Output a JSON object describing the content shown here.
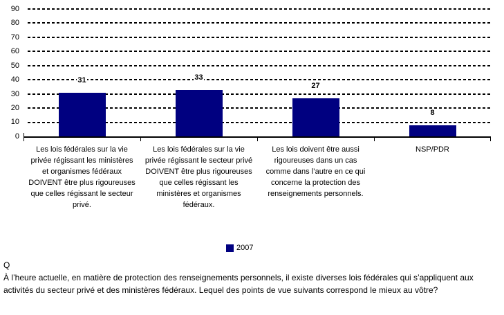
{
  "chart_data": {
    "type": "bar",
    "categories": [
      "Les lois fédérales sur la vie privée régissant les ministères et organismes fédéraux DOIVENT être plus rigoureuses que celles régissant le secteur privé.",
      "Les lois fédérales sur la vie privée régissant le secteur privé DOIVENT être plus rigoureuses que celles régissant les ministères et organismes fédéraux.",
      "Les lois doivent être aussi rigoureuses dans un cas comme dans l’autre en ce qui concerne la protection des renseignements personnels.",
      "NSP/PDR"
    ],
    "series": [
      {
        "name": "2007",
        "values": [
          31,
          33,
          27,
          8
        ]
      }
    ],
    "title": "",
    "xlabel": "",
    "ylabel": "",
    "ylim": [
      0,
      90
    ],
    "yticks": [
      0,
      10,
      20,
      30,
      40,
      50,
      60,
      70,
      80,
      90
    ],
    "grid": "horizontal-dotted",
    "legend_position": "bottom",
    "bar_color": "#000080"
  },
  "legend": {
    "label": "2007"
  },
  "question": {
    "prefix": "Q",
    "text": "À l’heure actuelle, en matière de protection des renseignements personnels, il existe diverses lois fédérales qui s’appliquent aux activités du secteur privé et des ministères fédéraux. Lequel des points de vue suivants correspond le mieux au vôtre?"
  }
}
